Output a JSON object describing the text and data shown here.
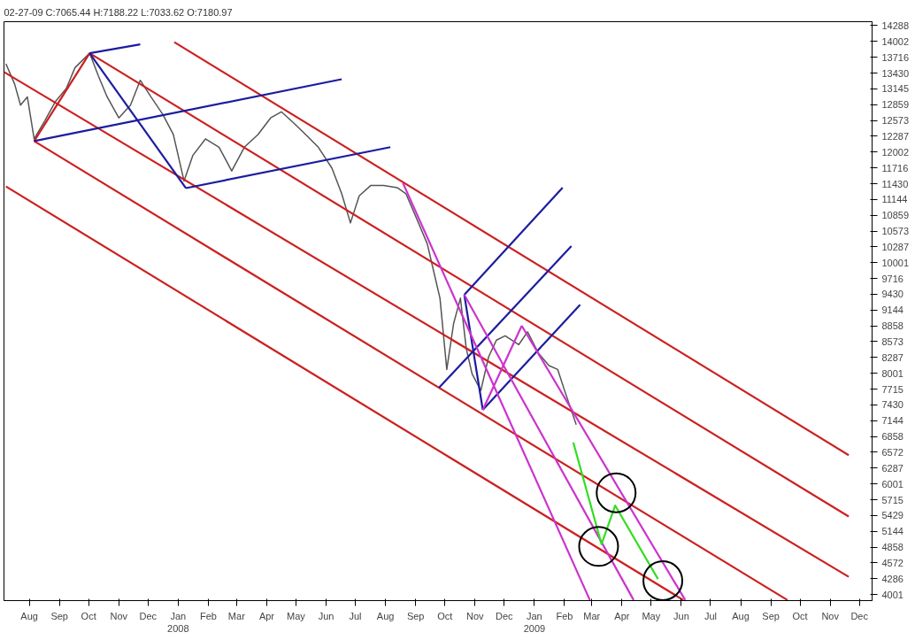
{
  "chart_data": {
    "type": "line",
    "title": "02-27-09   C:7065.44   H:7188.22   L:7033.62   O:7180.97",
    "xlim": [
      "2007-07-20",
      "2009-12-28"
    ],
    "xticks": [
      {
        "value": "2007-08-15",
        "label": "Aug"
      },
      {
        "value": "2007-09-15",
        "label": "Sep"
      },
      {
        "value": "2007-10-15",
        "label": "Oct"
      },
      {
        "value": "2007-11-15",
        "label": "Nov"
      },
      {
        "value": "2007-12-15",
        "label": "Dec"
      },
      {
        "value": "2008-01-15",
        "label": "Jan\n2008"
      },
      {
        "value": "2008-02-15",
        "label": "Feb"
      },
      {
        "value": "2008-03-15",
        "label": "Mar"
      },
      {
        "value": "2008-04-15",
        "label": "Apr"
      },
      {
        "value": "2008-05-15",
        "label": "May"
      },
      {
        "value": "2008-06-15",
        "label": "Jun"
      },
      {
        "value": "2008-07-15",
        "label": "Jul"
      },
      {
        "value": "2008-08-15",
        "label": "Aug"
      },
      {
        "value": "2008-09-15",
        "label": "Sep"
      },
      {
        "value": "2008-10-15",
        "label": "Oct"
      },
      {
        "value": "2008-11-15",
        "label": "Nov"
      },
      {
        "value": "2008-12-15",
        "label": "Dec"
      },
      {
        "value": "2009-01-15",
        "label": "Jan\n2009"
      },
      {
        "value": "2009-02-15",
        "label": "Feb"
      },
      {
        "value": "2009-03-15",
        "label": "Mar"
      },
      {
        "value": "2009-04-15",
        "label": "Apr"
      },
      {
        "value": "2009-05-15",
        "label": "May"
      },
      {
        "value": "2009-06-15",
        "label": "Jun"
      },
      {
        "value": "2009-07-15",
        "label": "Jul"
      },
      {
        "value": "2009-08-15",
        "label": "Aug"
      },
      {
        "value": "2009-09-15",
        "label": "Sep"
      },
      {
        "value": "2009-10-15",
        "label": "Oct"
      },
      {
        "value": "2009-11-15",
        "label": "Nov"
      },
      {
        "value": "2009-12-15",
        "label": "Dec"
      }
    ],
    "ylim": [
      3890,
      14360
    ],
    "yticks": [
      4001,
      4286,
      4572,
      4858,
      5144,
      5429,
      5715,
      6001,
      6287,
      6572,
      6858,
      7144,
      7430,
      7715,
      8001,
      8287,
      8573,
      8858,
      9144,
      9430,
      9716,
      10001,
      10287,
      10573,
      10859,
      11144,
      11430,
      11716,
      12002,
      12287,
      12573,
      12859,
      13145,
      13430,
      13716,
      14002,
      14288
    ],
    "grid": false,
    "series": [
      {
        "color": "#555555",
        "x": [
          "2007-07-22",
          "2007-07-31",
          "2007-08-06",
          "2007-08-13",
          "2007-08-20",
          "2007-08-31",
          "2007-09-11",
          "2007-09-22",
          "2007-10-01",
          "2007-10-16",
          "2007-10-25",
          "2007-11-03",
          "2007-11-15",
          "2007-11-27",
          "2007-12-07",
          "2007-12-18",
          "2007-12-30",
          "2008-01-10",
          "2008-01-21",
          "2008-01-30",
          "2008-02-12",
          "2008-02-26",
          "2008-03-10",
          "2008-03-23",
          "2008-04-06",
          "2008-04-19",
          "2008-04-30",
          "2008-05-12",
          "2008-05-25",
          "2008-06-07",
          "2008-06-21",
          "2008-07-01",
          "2008-07-10",
          "2008-07-19",
          "2008-07-31",
          "2008-08-13",
          "2008-08-27",
          "2008-09-05",
          "2008-09-16",
          "2008-09-27",
          "2008-10-04",
          "2008-10-10",
          "2008-10-17",
          "2008-10-24",
          "2008-10-31",
          "2008-11-06",
          "2008-11-12",
          "2008-11-21",
          "2008-11-29",
          "2008-12-07",
          "2008-12-16",
          "2008-12-30",
          "2009-01-08",
          "2009-01-19",
          "2009-01-30",
          "2009-02-08",
          "2009-02-15",
          "2009-02-27"
        ],
        "values": [
          13600,
          13230,
          12850,
          13000,
          12240,
          12570,
          12920,
          13150,
          13530,
          13790,
          13380,
          13000,
          12620,
          12850,
          13300,
          13000,
          12690,
          12320,
          11480,
          11940,
          12240,
          12090,
          11660,
          12090,
          12320,
          12620,
          12730,
          12540,
          12320,
          12090,
          11710,
          11250,
          10720,
          11210,
          11400,
          11400,
          11360,
          11250,
          10800,
          10340,
          9810,
          9360,
          8070,
          8900,
          9360,
          8450,
          7990,
          7690,
          8300,
          8600,
          8680,
          8520,
          8750,
          8370,
          8140,
          8070,
          7690,
          7070
        ]
      },
      {
        "color": "#cc2020",
        "x": [
          "2008-01-11",
          "2009-12-04"
        ],
        "values": [
          13990,
          6520
        ]
      },
      {
        "color": "#cc2020",
        "x": [
          "2007-10-16",
          "2009-12-04"
        ],
        "values": [
          13790,
          5410
        ]
      },
      {
        "color": "#cc2020",
        "x": [
          "2007-07-20",
          "2009-12-04"
        ],
        "values": [
          13450,
          4320
        ]
      },
      {
        "color": "#cc2020",
        "x": [
          "2007-08-20",
          "2009-10-02"
        ],
        "values": [
          12200,
          3900
        ]
      },
      {
        "color": "#cc2020",
        "x": [
          "2007-07-22",
          "2009-06-17"
        ],
        "values": [
          11380,
          3900
        ]
      },
      {
        "color": "#cc2020",
        "x": [
          "2007-08-20",
          "2007-10-16"
        ],
        "values": [
          12200,
          13790
        ]
      },
      {
        "color": "#1c1ca0",
        "x": [
          "2007-10-16",
          "2007-12-07"
        ],
        "values": [
          13790,
          13950
        ]
      },
      {
        "color": "#1c1ca0",
        "x": [
          "2007-08-20",
          "2008-07-01"
        ],
        "values": [
          12200,
          13320
        ]
      },
      {
        "color": "#1c1ca0",
        "x": [
          "2007-10-16",
          "2008-01-23"
        ],
        "values": [
          13790,
          11350
        ]
      },
      {
        "color": "#1c1ca0",
        "x": [
          "2008-01-23",
          "2008-08-20"
        ],
        "values": [
          11350,
          12090
        ]
      },
      {
        "color": "#1c1ca0",
        "x": [
          "2008-11-04",
          "2009-02-13"
        ],
        "values": [
          9420,
          11360
        ]
      },
      {
        "color": "#1c1ca0",
        "x": [
          "2008-10-09",
          "2009-02-22"
        ],
        "values": [
          7740,
          10300
        ]
      },
      {
        "color": "#1c1ca0",
        "x": [
          "2008-11-23",
          "2009-03-03"
        ],
        "values": [
          7340,
          9240
        ]
      },
      {
        "color": "#1c1ca0",
        "x": [
          "2008-11-04",
          "2008-11-23"
        ],
        "values": [
          9420,
          7340
        ]
      },
      {
        "color": "#cc33cc",
        "x": [
          "2008-09-02",
          "2009-03-13"
        ],
        "values": [
          11440,
          3900
        ]
      },
      {
        "color": "#cc33cc",
        "x": [
          "2008-11-23",
          "2009-01-02"
        ],
        "values": [
          7340,
          8860
        ]
      },
      {
        "color": "#cc33cc",
        "x": [
          "2009-01-02",
          "2009-06-19"
        ],
        "values": [
          8860,
          3900
        ]
      },
      {
        "color": "#cc33cc",
        "x": [
          "2008-11-04",
          "2009-04-27"
        ],
        "values": [
          9420,
          3900
        ]
      },
      {
        "color": "#33dd22",
        "x": [
          "2009-02-24",
          "2009-03-25",
          "2009-04-08",
          "2009-05-22"
        ],
        "values": [
          6750,
          4910,
          5610,
          4280
        ]
      },
      {
        "type": "scatter",
        "marker": "circle",
        "color": "#000000",
        "x": [
          "2009-04-09",
          "2009-03-22",
          "2009-05-27"
        ],
        "values": [
          5840,
          4870,
          4250
        ]
      }
    ]
  }
}
